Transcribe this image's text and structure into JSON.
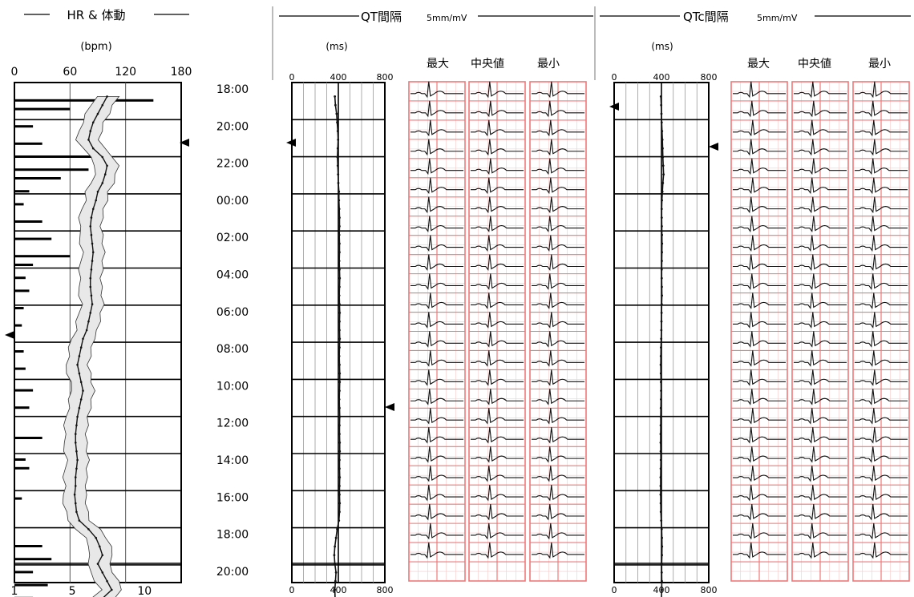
{
  "hr_panel": {
    "title": "HR & 体動",
    "unit": "(bpm)",
    "top_ticks": [
      "0",
      "60",
      "120",
      "180"
    ],
    "bottom_ticks": [
      "1",
      "5",
      "10"
    ]
  },
  "time_labels": [
    "18:00",
    "20:00",
    "22:00",
    "00:00",
    "02:00",
    "04:00",
    "06:00",
    "08:00",
    "10:00",
    "12:00",
    "14:00",
    "16:00",
    "18:00",
    "20:00"
  ],
  "qt_panel": {
    "title": "QT間隔",
    "scale": "5mm/mV",
    "unit": "(ms)",
    "ticks": [
      "0",
      "400",
      "800"
    ],
    "ecg_columns": [
      "最大",
      "中央値",
      "最小"
    ]
  },
  "qtc_panel": {
    "title": "QTc間隔",
    "scale": "5mm/mV",
    "unit": "(ms)",
    "ticks": [
      "0",
      "400",
      "800"
    ],
    "ecg_columns": [
      "最大",
      "中央値",
      "最小"
    ]
  },
  "colors": {
    "ecg_grid": "#f07878",
    "ecg_grid_minor": "#f8c8c8",
    "trace": "#111111",
    "frame": "#000000"
  },
  "chart_data": [
    {
      "type": "line",
      "title": "HR & 体動",
      "ylabel": "(bpm)",
      "xlim": [
        0,
        180
      ],
      "time_span_hours": [
        0,
        26
      ],
      "x_hours": [
        0.2,
        0.6,
        1.0,
        1.4,
        1.8,
        2.2,
        2.6,
        3.0,
        3.4,
        3.8,
        4.2,
        4.6,
        5.0,
        5.4,
        5.8,
        6.2,
        6.6,
        7.0,
        7.4,
        7.8,
        8.2,
        8.6,
        9.0,
        9.4,
        9.8,
        10.2,
        10.6,
        11.0,
        11.4,
        11.8,
        12.2,
        12.6,
        13.0,
        13.4,
        13.8,
        14.2,
        14.6,
        15.0,
        15.4,
        15.8,
        16.2,
        16.6,
        17.0,
        17.4,
        17.8,
        18.2,
        18.6,
        19.0,
        19.4,
        19.8,
        20.2,
        20.6,
        21.0,
        21.4,
        21.8,
        22.2,
        22.6,
        23.0,
        23.4,
        23.8
      ],
      "series": [
        {
          "name": "HR",
          "values": [
            100,
            95,
            90,
            85,
            82,
            80,
            85,
            95,
            100,
            98,
            95,
            90,
            88,
            85,
            83,
            82,
            83,
            84,
            85,
            84,
            83,
            82,
            82,
            83,
            84,
            82,
            80,
            78,
            74,
            72,
            70,
            68,
            70,
            72,
            74,
            72,
            70,
            68,
            67,
            66,
            66,
            67,
            68,
            67,
            66,
            66,
            65,
            66,
            67,
            70,
            80,
            88,
            92,
            95,
            90,
            95,
            100,
            105,
            95,
            90
          ]
        }
      ],
      "activity": {
        "xlim": [
          1,
          10
        ],
        "x_hours": [
          0.4,
          0.8,
          1.6,
          2.4,
          3.0,
          3.6,
          4.0,
          4.6,
          5.2,
          6.0,
          6.8,
          7.6,
          8.0,
          8.6,
          9.2,
          10.0,
          10.8,
          12.0,
          12.8,
          13.8,
          14.6,
          16.0,
          17.0,
          17.4,
          18.8,
          21.0,
          21.6,
          22.2,
          22.8,
          23.4
        ],
        "values": [
          8.5,
          4.0,
          2.0,
          2.5,
          6.0,
          5.0,
          3.5,
          1.8,
          1.5,
          2.5,
          3.0,
          4.0,
          2.0,
          1.6,
          1.8,
          1.5,
          1.4,
          1.5,
          1.6,
          2.0,
          1.8,
          2.5,
          1.6,
          1.8,
          1.4,
          2.5,
          3.0,
          2.0,
          2.8,
          2.0
        ]
      }
    },
    {
      "type": "line",
      "title": "QT間隔",
      "ylabel": "(ms)",
      "xlim": [
        0,
        800
      ],
      "series": [
        {
          "name": "QT",
          "values": [
            370,
            375,
            385,
            390,
            395,
            398,
            395,
            392,
            395,
            398,
            400,
            405,
            405,
            408,
            410,
            410,
            408,
            410,
            410,
            408,
            410,
            412,
            410,
            408,
            410,
            412,
            410,
            410,
            412,
            410,
            408,
            410,
            412,
            412,
            410,
            408,
            410,
            412,
            410,
            410,
            412,
            412,
            410,
            410,
            412,
            410,
            410,
            412,
            410,
            405,
            390,
            380,
            370,
            365,
            370,
            380,
            375,
            370,
            372,
            380
          ]
        }
      ]
    },
    {
      "type": "line",
      "title": "QTc間隔",
      "ylabel": "(ms)",
      "xlim": [
        0,
        800
      ],
      "series": [
        {
          "name": "QTc",
          "values": [
            395,
            398,
            400,
            402,
            405,
            408,
            410,
            412,
            415,
            418,
            412,
            408,
            404,
            402,
            402,
            403,
            404,
            405,
            404,
            403,
            402,
            402,
            403,
            404,
            402,
            401,
            400,
            399,
            398,
            396,
            395,
            394,
            395,
            396,
            397,
            396,
            395,
            394,
            394,
            393,
            393,
            394,
            395,
            394,
            393,
            393,
            393,
            394,
            395,
            398,
            402,
            404,
            405,
            404,
            402,
            402,
            403,
            402,
            400,
            398
          ]
        }
      ]
    }
  ]
}
